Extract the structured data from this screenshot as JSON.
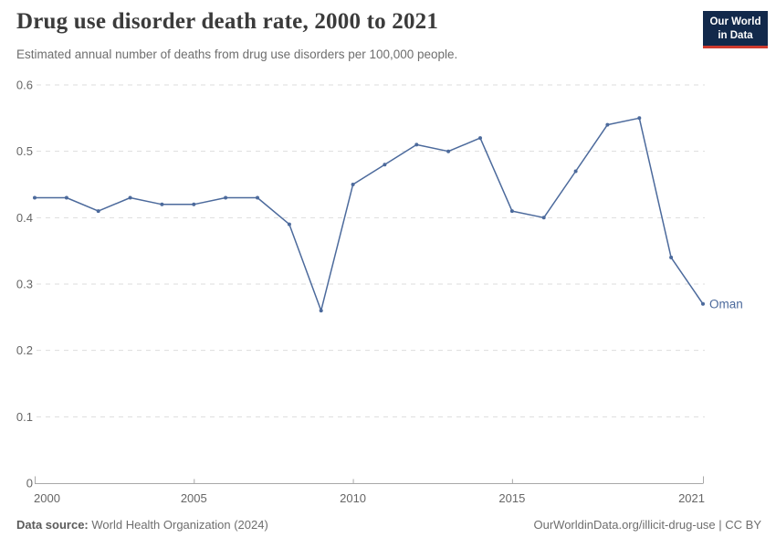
{
  "header": {
    "title": "Drug use disorder death rate, 2000 to 2021",
    "subtitle": "Estimated annual number of deaths from drug use disorders per 100,000 people."
  },
  "logo": {
    "line1": "Our World",
    "line2": "in Data",
    "bg_color": "#12294B",
    "accent_color": "#CE3A2E"
  },
  "chart_data": {
    "type": "line",
    "title": "Drug use disorder death rate, 2000 to 2021",
    "xlabel": "",
    "ylabel": "",
    "xlim": [
      2000,
      2021
    ],
    "ylim": [
      0,
      0.6
    ],
    "x_ticks": [
      2000,
      2005,
      2010,
      2015,
      2021
    ],
    "y_ticks": [
      0,
      0.1,
      0.2,
      0.3,
      0.4,
      0.5,
      0.6
    ],
    "grid": "horizontal-dashed",
    "legend_position": "end-of-line-label",
    "x": [
      2000,
      2001,
      2002,
      2003,
      2004,
      2005,
      2006,
      2007,
      2008,
      2009,
      2010,
      2011,
      2012,
      2013,
      2014,
      2015,
      2016,
      2017,
      2018,
      2019,
      2020,
      2021
    ],
    "series": [
      {
        "name": "Oman",
        "color": "#4C6A9C",
        "values": [
          0.43,
          0.43,
          0.41,
          0.43,
          0.42,
          0.42,
          0.43,
          0.43,
          0.39,
          0.26,
          0.45,
          0.48,
          0.51,
          0.5,
          0.52,
          0.41,
          0.4,
          0.47,
          0.54,
          0.55,
          0.34,
          0.27
        ]
      }
    ],
    "colors": {
      "gridline": "#dddddd",
      "axis": "#a8a8a8",
      "tick_label": "#666666"
    }
  },
  "footer": {
    "datasource_label": "Data source:",
    "datasource_value": "World Health Organization (2024)",
    "credit": "OurWorldinData.org/illicit-drug-use | CC BY"
  }
}
